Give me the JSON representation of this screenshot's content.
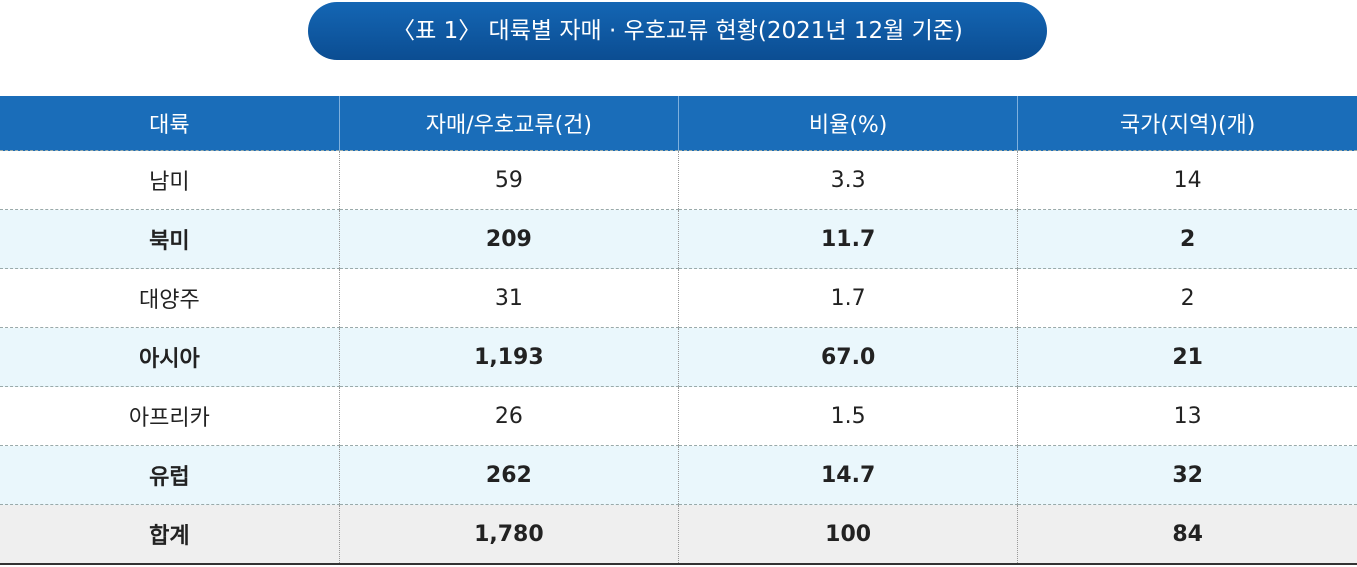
{
  "title": "〈표 1〉 대륙별 자매 · 우호교류 현황(2021년 12월 기준)",
  "table": {
    "header": [
      "대륙",
      "자매/우호교류(건)",
      "비율(%)",
      "국가(지역)(개)"
    ],
    "rows": [
      [
        "남미",
        "59",
        "3.3",
        "14"
      ],
      [
        "북미",
        "209",
        "11.7",
        "2"
      ],
      [
        "대양주",
        "31",
        "1.7",
        "2"
      ],
      [
        "아시아",
        "1,193",
        "67.0",
        "21"
      ],
      [
        "아프리카",
        "26",
        "1.5",
        "13"
      ],
      [
        "유럽",
        "262",
        "14.7",
        "32"
      ]
    ],
    "total": [
      "합계",
      "1,780",
      "100",
      "84"
    ]
  }
}
